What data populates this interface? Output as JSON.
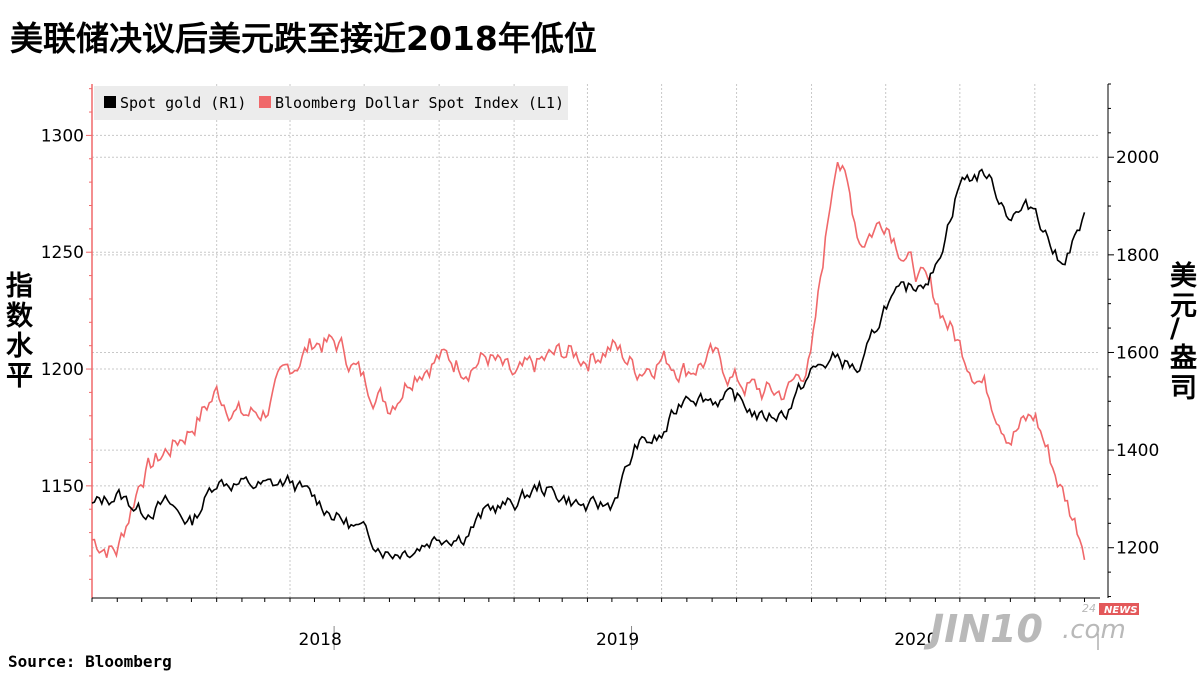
{
  "title": "美联储决议后美元跌至接近2018年低位",
  "source": "Source:  Bloomberg",
  "watermark": {
    "brand": "JIN10",
    "domain": ".com",
    "badge_num": "24",
    "badge_text": "NEWS"
  },
  "colors": {
    "gold": "#000000",
    "dollar": "#f0686a",
    "grid": "#c8c8c8",
    "watermark": "#b9b9b9",
    "news_badge": "#e3585a"
  },
  "chart_data": {
    "type": "line",
    "title": "美联储决议后美元跌至接近2018年低位",
    "xlabel": "",
    "x_ticks": [
      "2018",
      "2019",
      "2020"
    ],
    "y_left": {
      "label": "指数水平",
      "ticks": [
        1150,
        1200,
        1250,
        1300
      ],
      "range": [
        1102,
        1322
      ]
    },
    "y_right": {
      "label": "美元/盎司",
      "ticks": [
        1200,
        1400,
        1600,
        1800,
        2000
      ],
      "range": [
        1097,
        2150
      ]
    },
    "grid": true,
    "legend": {
      "placement": "top-left",
      "entries": [
        "Spot gold (R1)",
        "Bloomberg Dollar Spot Index (L1)"
      ]
    },
    "series": [
      {
        "name": "Spot gold (R1)",
        "axis": "right",
        "x": [
          "2017-08",
          "2017-09",
          "2017-10",
          "2017-11",
          "2017-12",
          "2018-01",
          "2018-02",
          "2018-03",
          "2018-04",
          "2018-05",
          "2018-06",
          "2018-07",
          "2018-08",
          "2018-09",
          "2018-10",
          "2018-11",
          "2018-12",
          "2019-01",
          "2019-02",
          "2019-03",
          "2019-04",
          "2019-05",
          "2019-06",
          "2019-07",
          "2019-08",
          "2019-09",
          "2019-10",
          "2019-11",
          "2019-12",
          "2020-01",
          "2020-02",
          "2020-03",
          "2020-04",
          "2020-05",
          "2020-06",
          "2020-07",
          "2020-08",
          "2020-09",
          "2020-10",
          "2020-11",
          "2020-12"
        ],
        "values": [
          1285,
          1310,
          1275,
          1290,
          1250,
          1340,
          1330,
          1325,
          1335,
          1300,
          1260,
          1230,
          1190,
          1200,
          1225,
          1225,
          1280,
          1290,
          1325,
          1305,
          1280,
          1290,
          1410,
          1425,
          1520,
          1505,
          1505,
          1465,
          1480,
          1560,
          1590,
          1560,
          1700,
          1730,
          1770,
          1950,
          1970,
          1880,
          1900,
          1780,
          1870
        ]
      },
      {
        "name": "Bloomberg Dollar Spot Index (L1)",
        "axis": "left",
        "x": [
          "2017-08",
          "2017-09",
          "2017-10",
          "2017-11",
          "2017-12",
          "2018-01",
          "2018-02",
          "2018-03",
          "2018-04",
          "2018-05",
          "2018-06",
          "2018-07",
          "2018-08",
          "2018-09",
          "2018-10",
          "2018-11",
          "2018-12",
          "2019-01",
          "2019-02",
          "2019-03",
          "2019-04",
          "2019-05",
          "2019-06",
          "2019-07",
          "2019-08",
          "2019-09",
          "2019-10",
          "2019-11",
          "2019-12",
          "2020-01",
          "2020-02",
          "2020-03",
          "2020-04",
          "2020-05",
          "2020-06",
          "2020-07",
          "2020-08",
          "2020-09",
          "2020-10",
          "2020-11",
          "2020-12"
        ],
        "values": [
          1127,
          1122,
          1155,
          1165,
          1175,
          1190,
          1180,
          1182,
          1200,
          1212,
          1210,
          1195,
          1185,
          1200,
          1205,
          1202,
          1205,
          1195,
          1202,
          1207,
          1205,
          1210,
          1200,
          1205,
          1200,
          1205,
          1195,
          1190,
          1190,
          1205,
          1295,
          1255,
          1265,
          1245,
          1230,
          1210,
          1193,
          1172,
          1180,
          1150,
          1125
        ]
      }
    ]
  }
}
